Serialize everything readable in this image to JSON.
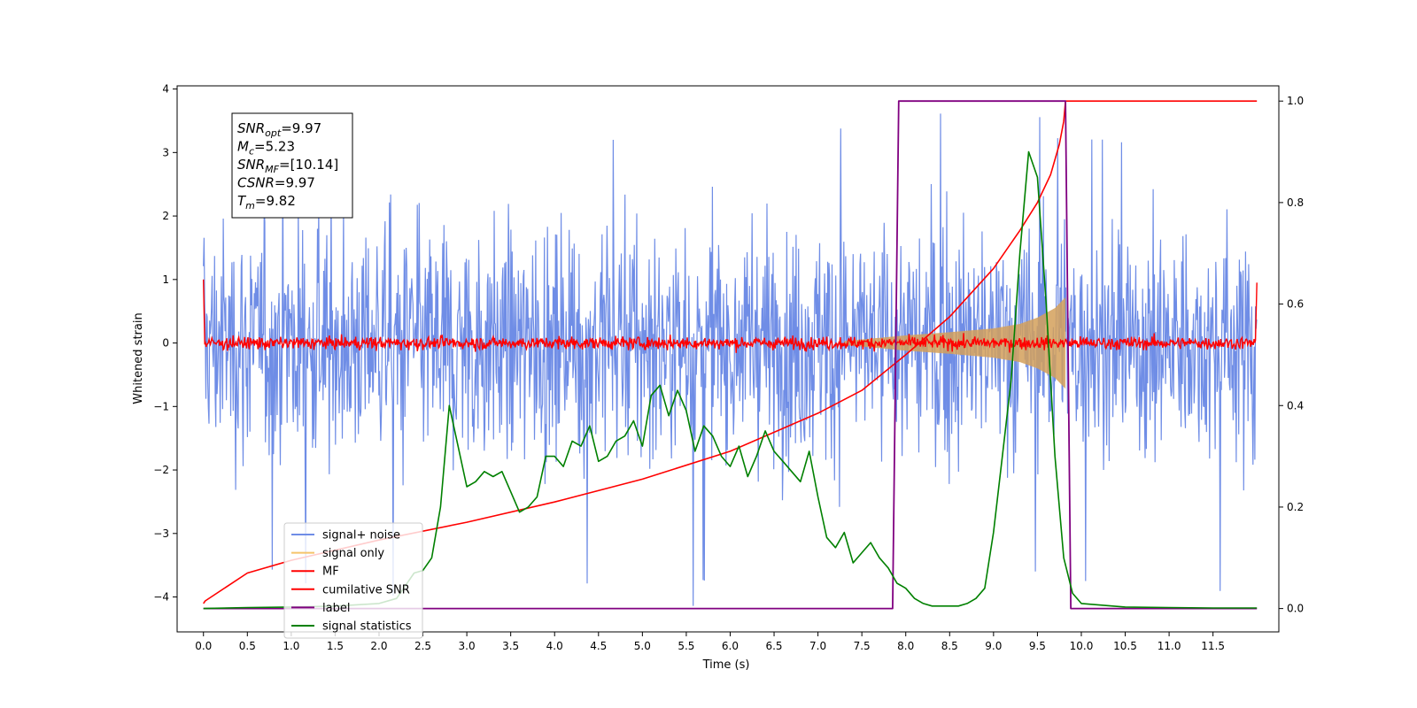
{
  "chart_data": {
    "type": "line",
    "xlabel": "Time (s)",
    "ylabel": "Whitened strain",
    "xlim": [
      -0.3,
      12.25
    ],
    "ylim": [
      -4.55,
      4.05
    ],
    "y2lim": [
      -0.046,
      1.03
    ],
    "x_ticks": [
      "0.0",
      "0.5",
      "1.0",
      "1.5",
      "2.0",
      "2.5",
      "3.0",
      "3.5",
      "4.0",
      "4.5",
      "5.0",
      "5.5",
      "6.0",
      "6.5",
      "7.0",
      "7.5",
      "8.0",
      "8.5",
      "9.0",
      "9.5",
      "10.0",
      "10.5",
      "11.0",
      "11.5"
    ],
    "y_ticks": [
      "4",
      "3",
      "2",
      "1",
      "0",
      "−1",
      "−2",
      "−3",
      "−4"
    ],
    "y2_ticks": [
      "1.0",
      "0.8",
      "0.6",
      "0.4",
      "0.2",
      "0.0"
    ],
    "legend_position": "lower-left",
    "legend": [
      {
        "label": "signal+ noise",
        "color": "#6f8de6"
      },
      {
        "label": "signal only",
        "color": "#f5c46a"
      },
      {
        "label": "MF",
        "color": "#ff0000"
      },
      {
        "label": "cumilative SNR",
        "color": "#ff0000"
      },
      {
        "label": "label",
        "color": "#800080"
      },
      {
        "label": "signal statistics",
        "color": "#008000"
      }
    ],
    "annotation": [
      {
        "var": "SNR",
        "sub": "opt",
        "rest": "=9.97"
      },
      {
        "var": "M",
        "sub": "c",
        "rest": "=5.23"
      },
      {
        "var": "SNR",
        "sub": "MF",
        "rest": "=[10.14]"
      },
      {
        "var": "CSNR",
        "sub": "",
        "rest": "=9.97"
      },
      {
        "var": "T",
        "sub": "m",
        "rest": "=9.82"
      }
    ],
    "series": [
      {
        "name": "signal+ noise",
        "axis": "left",
        "color": "#6f8de6",
        "style": "noise band",
        "x_range": [
          0.0,
          12.0
        ],
        "typical_amplitude": [
          -2.0,
          2.0
        ],
        "extreme_amplitude": [
          -4.15,
          3.65
        ]
      },
      {
        "name": "signal only",
        "axis": "left",
        "color": "#d4a05a",
        "style": "chirp envelope",
        "x_range": [
          7.3,
          9.82
        ],
        "envelope": {
          "x": [
            7.3,
            8.0,
            8.5,
            9.0,
            9.3,
            9.5,
            9.7,
            9.82
          ],
          "y": [
            0.03,
            0.12,
            0.17,
            0.23,
            0.3,
            0.4,
            0.55,
            0.72
          ]
        }
      },
      {
        "name": "MF",
        "axis": "left",
        "color": "#ff0000",
        "style": "noise band",
        "x_range": [
          0.0,
          12.0
        ],
        "typical_amplitude": [
          -0.12,
          0.12
        ],
        "extreme_amplitude": [
          -0.2,
          0.28
        ],
        "edge_values": {
          "start": 1.0,
          "end": 0.95
        }
      },
      {
        "name": "cumilative SNR",
        "axis": "right",
        "color": "#ff0000",
        "x": [
          0.0,
          0.02,
          0.5,
          1.0,
          2.0,
          3.0,
          4.0,
          5.0,
          6.0,
          7.0,
          7.5,
          8.0,
          8.5,
          9.0,
          9.3,
          9.5,
          9.65,
          9.75,
          9.8,
          9.82,
          12.0
        ],
        "y": [
          0.01,
          0.015,
          0.07,
          0.095,
          0.135,
          0.17,
          0.21,
          0.255,
          0.31,
          0.385,
          0.43,
          0.5,
          0.575,
          0.67,
          0.745,
          0.8,
          0.855,
          0.915,
          0.96,
          1.0,
          1.0
        ]
      },
      {
        "name": "label",
        "axis": "right",
        "color": "#800080",
        "x": [
          0.0,
          7.85,
          7.92,
          9.82,
          9.88,
          12.0
        ],
        "y": [
          0.0,
          0.0,
          1.0,
          1.0,
          0.0,
          0.0
        ]
      },
      {
        "name": "signal statistics",
        "axis": "right",
        "color": "#008000",
        "x": [
          0.0,
          0.5,
          1.0,
          1.5,
          2.0,
          2.2,
          2.4,
          2.5,
          2.6,
          2.7,
          2.8,
          2.9,
          3.0,
          3.1,
          3.2,
          3.3,
          3.4,
          3.5,
          3.6,
          3.7,
          3.8,
          3.9,
          4.0,
          4.1,
          4.2,
          4.3,
          4.4,
          4.5,
          4.6,
          4.7,
          4.8,
          4.9,
          5.0,
          5.1,
          5.2,
          5.3,
          5.4,
          5.5,
          5.6,
          5.7,
          5.8,
          5.9,
          6.0,
          6.1,
          6.2,
          6.3,
          6.4,
          6.5,
          6.6,
          6.7,
          6.8,
          6.9,
          7.0,
          7.1,
          7.2,
          7.3,
          7.4,
          7.5,
          7.6,
          7.7,
          7.8,
          7.9,
          8.0,
          8.1,
          8.2,
          8.3,
          8.4,
          8.5,
          8.6,
          8.7,
          8.8,
          8.9,
          9.0,
          9.1,
          9.2,
          9.3,
          9.4,
          9.5,
          9.6,
          9.7,
          9.8,
          9.9,
          10.0,
          10.5,
          11.0,
          11.5,
          12.0
        ],
        "y": [
          0.0,
          0.002,
          0.003,
          0.005,
          0.01,
          0.02,
          0.07,
          0.075,
          0.1,
          0.2,
          0.4,
          0.32,
          0.24,
          0.25,
          0.27,
          0.26,
          0.27,
          0.23,
          0.19,
          0.2,
          0.22,
          0.3,
          0.3,
          0.28,
          0.33,
          0.32,
          0.36,
          0.29,
          0.3,
          0.33,
          0.34,
          0.37,
          0.32,
          0.42,
          0.44,
          0.38,
          0.43,
          0.39,
          0.31,
          0.36,
          0.34,
          0.3,
          0.28,
          0.32,
          0.26,
          0.3,
          0.35,
          0.31,
          0.29,
          0.27,
          0.25,
          0.31,
          0.22,
          0.14,
          0.12,
          0.15,
          0.09,
          0.11,
          0.13,
          0.1,
          0.08,
          0.05,
          0.04,
          0.02,
          0.01,
          0.005,
          0.005,
          0.005,
          0.005,
          0.01,
          0.02,
          0.04,
          0.15,
          0.3,
          0.45,
          0.7,
          0.9,
          0.85,
          0.6,
          0.3,
          0.1,
          0.03,
          0.01,
          0.003,
          0.002,
          0.001,
          0.001
        ]
      }
    ]
  }
}
